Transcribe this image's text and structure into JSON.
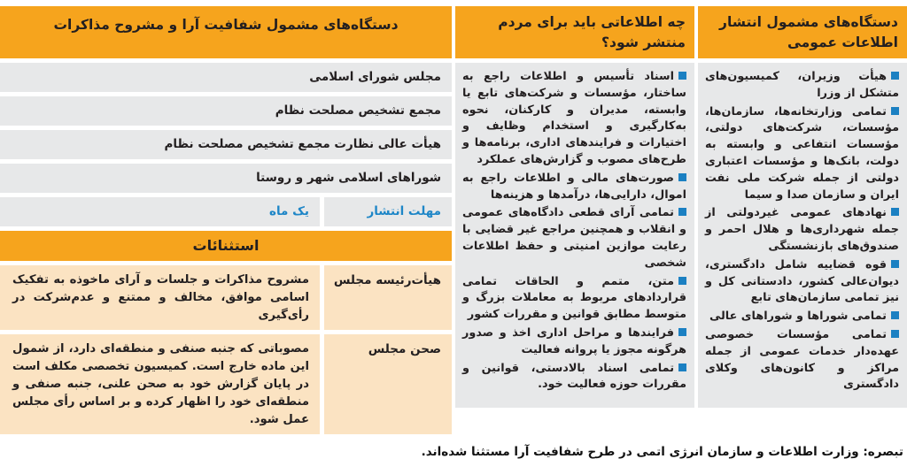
{
  "colors": {
    "accent_orange": "#f6a41d",
    "panel_gray": "#e7e8e9",
    "exception_peach": "#fbe3c2",
    "label_blue": "#1e86c7",
    "bullet_blue": "#1b80c2",
    "text_dark": "#231f20"
  },
  "columns": {
    "publishers": {
      "title": "دستگاه‌های مشمول انتشار اطلاعات عمومی",
      "items": [
        "هیأت وزیران، کمیسیون‌های متشکل از وزرا",
        "تمامی وزارتخانه‌ها، سازمان‌ها، مؤسسات، شرکت‌های دولتی، مؤسسات انتفاعی و وابسته به دولت، بانک‌ها و مؤسسات اعتباری دولتی از جمله شرکت ملی نفت ایران و سازمان صدا و سیما",
        "نهادهای عمومی غیردولتی از جمله شهرداری‌ها و هلال احمر و صندوق‌های بازنشستگی",
        "قوه قضاییه شامل دادگستری، دیوان‌عالی کشور، دادستانی کل و نیز تمامی سازمان‌های تابع",
        "تمامی شوراها و شوراهای عالی",
        "تمامی مؤسسات خصوصی عهده‌دار خدمات عمومی از جمله مراکز و کانون‌های وکلای دادگستری"
      ]
    },
    "information": {
      "title": "چه اطلاعاتی باید برای مردم منتشر شود؟",
      "items": [
        "اسناد تأسیس و اطلاعات راجع به ساختار، مؤسسات و شرکت‌های تابع یا وابسته، مدیران و کارکنان، نحوه به‌کارگیری و استخدام وظایف و اختیارات و فرایندهای اداری، برنامه‌ها و طرح‌های مصوب و گزارش‌های عملکرد",
        "صورت‌های مالی و اطلاعات راجع به اموال، دارایی‌ها، درآمدها و هزینه‌ها",
        "تمامی آرای قطعی دادگاه‌های عمومی و انقلاب و همچنین مراجع غیر قضایی با رعایت موازین امنیتی و حفظ اطلاعات شخصی",
        "متن، متمم و الحاقات تمامی قراردادهای مربوط به معاملات بزرگ و متوسط مطابق قوانین و مقررات کشور",
        "فرایندها و مراحل اداری اخذ و صدور هرگونه مجوز یا پروانه فعالیت",
        "تمامی اسناد بالادستی، قوانین و مقررات حوزه فعالیت خود."
      ]
    },
    "votes": {
      "title": "دستگاه‌های مشمول شفافیت آرا و مشروح مذاکرات",
      "rows": [
        "مجلس شورای اسلامی",
        "مجمع تشخیص مصلحت نظام",
        "هیأت عالی نظارت مجمع تشخیص مصلحت نظام",
        "شوراهای اسلامی شهر و روستا"
      ],
      "deadline": {
        "label": "مهلت انتشار",
        "value": "یک ماه"
      },
      "exceptions": {
        "title": "استثنائات",
        "rows": [
          {
            "label": "هیأت‌رئیسه مجلس",
            "text": "مشروح مذاکرات و جلسات و آرای ماخوذه به تفکیک اسامی موافق، مخالف و ممتنع و عدم‌شرکت در رأی‌گیری"
          },
          {
            "label": "صحن مجلس",
            "text": "مصوباتی که جنبه صنفی و منطقه‌ای دارد، از شمول این ماده خارج است. کمیسیون تخصصی مکلف است در پایان گزارش خود به صحن علنی، جنبه صنفی و منطقه‌ای خود را اظهار کرده و بر اساس رأی مجلس عمل شود."
          }
        ]
      }
    }
  },
  "footnote": "تبصره: وزارت اطلاعات و سازمان انرژی اتمی در طرح شفافیت آرا مستثنا شده‌اند."
}
